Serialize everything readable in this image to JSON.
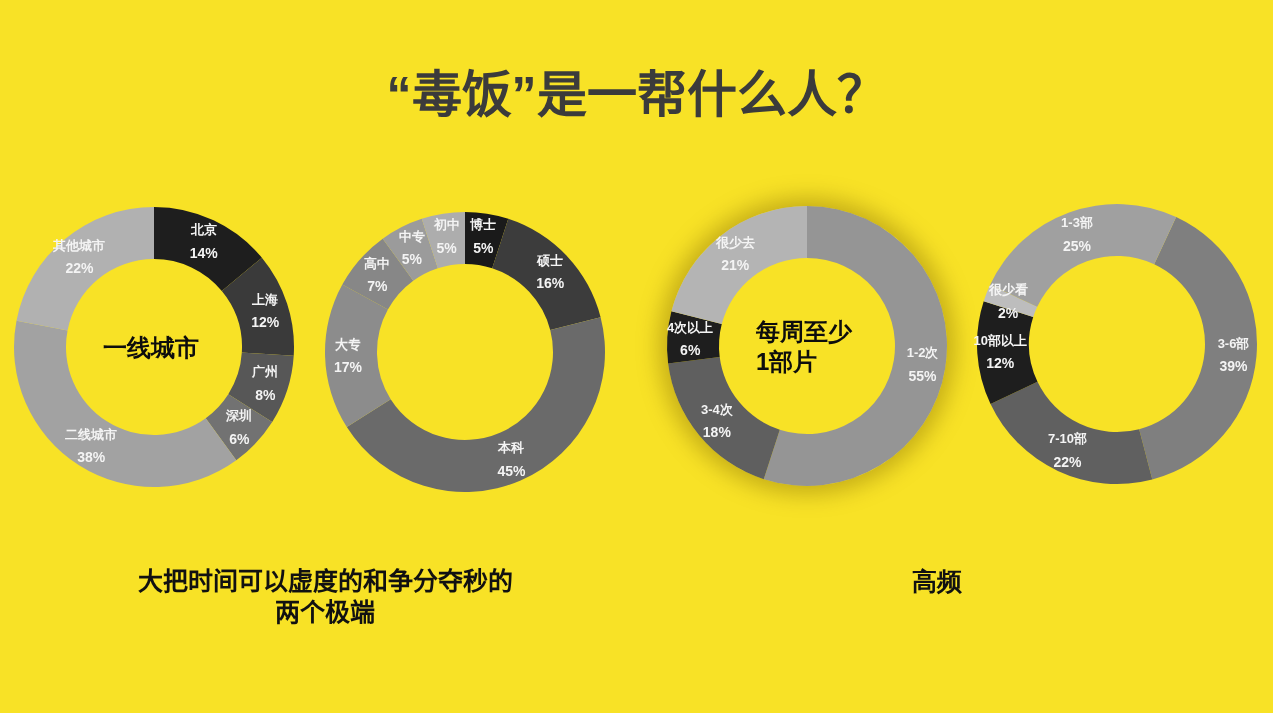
{
  "chart_data": [
    {
      "type": "donut",
      "title": "“毒饭”是一帮什么人？",
      "categories": [
        "北京",
        "上海",
        "广州",
        "深圳",
        "二线城市",
        "其他城市"
      ],
      "values": [
        14,
        12,
        8,
        6,
        38,
        22
      ],
      "value_labels": [
        "14%",
        "12%",
        "8%",
        "6%",
        "38%",
        "22%"
      ],
      "colors": [
        "#1e1e1e",
        "#3a3a3a",
        "#575757",
        "#727272",
        "#a2a2a2",
        "#b1b1b1"
      ],
      "annotations": [
        "一线城市",
        "大把时间可以虚度的和争分夺秒的两个极端"
      ]
    },
    {
      "type": "donut",
      "categories": [
        "博士",
        "硕士",
        "本科",
        "大专",
        "高中",
        "中专",
        "初中"
      ],
      "values": [
        5,
        16,
        45,
        17,
        7,
        5,
        5
      ],
      "value_labels": [
        "5%",
        "16%",
        "45%",
        "17%",
        "7%",
        "5%",
        "5%"
      ],
      "colors": [
        "#1a1a1a",
        "#3c3c3c",
        "#6a6a6a",
        "#8c8c8c",
        "#878787",
        "#9b9b9b",
        "#adadad"
      ]
    },
    {
      "type": "donut",
      "categories": [
        "1-2次",
        "3-4次",
        "4次以上",
        "很少去"
      ],
      "values": [
        55,
        18,
        6,
        21
      ],
      "value_labels": [
        "55%",
        "18%",
        "6%",
        "21%"
      ],
      "colors": [
        "#959595",
        "#5f5f5f",
        "#1e1e1e",
        "#b4b4b4"
      ],
      "annotations": [
        "每周至少1部片",
        "高频"
      ]
    },
    {
      "type": "donut",
      "categories": [
        "3-6部",
        "7-10部",
        "10部以上",
        "很少看",
        "1-3部"
      ],
      "values": [
        39,
        22,
        12,
        2,
        25
      ],
      "value_labels": [
        "39%",
        "22%",
        "12%",
        "2%",
        "25%"
      ],
      "colors": [
        "#7f7f7f",
        "#606060",
        "#1e1e1e",
        "#bdbdbd",
        "#a0a0a0"
      ]
    }
  ]
}
